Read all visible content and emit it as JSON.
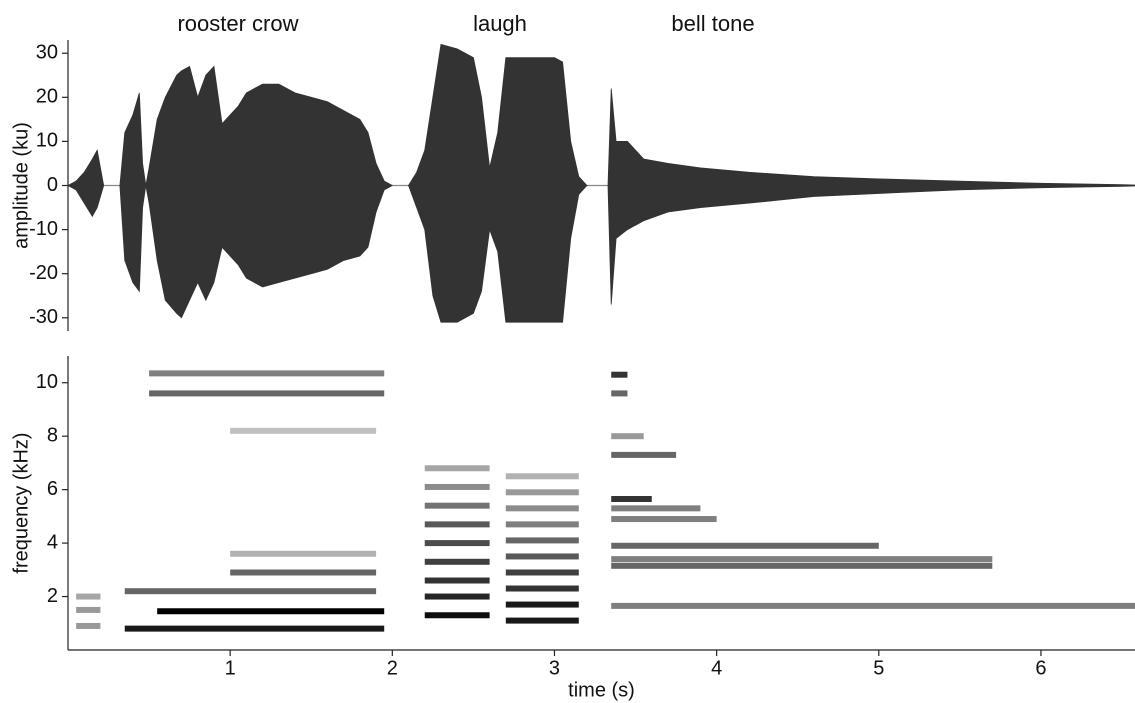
{
  "chart_data": [
    {
      "type": "waveform",
      "ylabel": "amplitude (ku)",
      "annotations": [
        "rooster crow",
        "laugh",
        "bell tone"
      ],
      "xlim": [
        0,
        6.58
      ],
      "ylim": [
        -33,
        33
      ],
      "yticks": [
        -30,
        -20,
        -10,
        0,
        10,
        20,
        30
      ],
      "color": "#333333",
      "x": [
        0.0,
        0.05,
        0.1,
        0.15,
        0.18,
        0.22,
        0.3,
        0.32,
        0.35,
        0.4,
        0.44,
        0.46,
        0.48,
        0.5,
        0.55,
        0.6,
        0.67,
        0.7,
        0.75,
        0.8,
        0.85,
        0.9,
        0.95,
        1.0,
        1.05,
        1.1,
        1.2,
        1.3,
        1.4,
        1.5,
        1.6,
        1.7,
        1.8,
        1.85,
        1.9,
        1.95,
        2.0,
        2.05,
        2.1,
        2.15,
        2.2,
        2.25,
        2.3,
        2.4,
        2.5,
        2.55,
        2.6,
        2.65,
        2.7,
        2.8,
        2.9,
        3.0,
        3.05,
        3.1,
        3.15,
        3.2,
        3.25,
        3.33,
        3.35,
        3.38,
        3.45,
        3.55,
        3.7,
        3.9,
        4.2,
        4.6,
        5.0,
        5.5,
        6.0,
        6.5,
        6.58
      ],
      "upper": [
        0,
        1,
        3,
        6,
        8,
        0,
        null,
        0,
        12,
        16,
        21,
        5,
        0,
        4,
        15,
        20,
        25,
        26,
        27,
        20,
        25,
        27,
        14,
        16,
        18,
        21,
        23,
        23,
        21,
        20,
        19,
        17,
        15,
        12,
        5,
        1,
        0,
        null,
        0,
        3,
        8,
        20,
        32,
        31,
        29,
        20,
        4,
        12,
        29,
        29,
        29,
        29,
        28,
        10,
        2,
        0,
        null,
        0,
        22,
        10,
        10,
        6,
        5,
        4,
        3,
        2,
        1.5,
        1,
        0.5,
        0.2,
        0.1
      ],
      "lower": [
        0,
        -1,
        -4,
        -7,
        -5,
        0,
        null,
        0,
        -17,
        -22,
        -24,
        -5,
        0,
        -4,
        -17,
        -26,
        -29,
        -30,
        -26,
        -22,
        -26,
        -22,
        -14,
        -16,
        -18,
        -21,
        -23,
        -22,
        -21,
        -20,
        -19,
        -17,
        -16,
        -14,
        -6,
        -1,
        0,
        null,
        0,
        -5,
        -10,
        -25,
        -31,
        -31,
        -29,
        -24,
        -10,
        -15,
        -31,
        -31,
        -31,
        -31,
        -31,
        -12,
        -2,
        0,
        null,
        0,
        -27,
        -12,
        -10,
        -8,
        -6,
        -5,
        -4,
        -2.5,
        -1.8,
        -1,
        -0.5,
        -0.2,
        -0.1
      ]
    },
    {
      "type": "spectrogram",
      "xlabel": "time (s)",
      "ylabel": "frequency (kHz)",
      "xlim": [
        0,
        6.58
      ],
      "xticks": [
        1,
        2,
        3,
        4,
        5,
        6
      ],
      "ylim": [
        0,
        11
      ],
      "yticks": [
        2,
        4,
        6,
        8,
        10
      ],
      "color": "#000000",
      "bands": [
        {
          "x": [
            0.05,
            0.2
          ],
          "f": 0.9,
          "level": 0.4
        },
        {
          "x": [
            0.05,
            0.2
          ],
          "f": 1.5,
          "level": 0.4
        },
        {
          "x": [
            0.05,
            0.2
          ],
          "f": 2.0,
          "level": 0.35
        },
        {
          "x": [
            0.35,
            1.95
          ],
          "f": 0.8,
          "level": 0.9
        },
        {
          "x": [
            0.55,
            1.95
          ],
          "f": 1.45,
          "level": 1.0
        },
        {
          "x": [
            0.35,
            1.9
          ],
          "f": 2.2,
          "level": 0.6
        },
        {
          "x": [
            1.0,
            1.9
          ],
          "f": 2.9,
          "level": 0.6
        },
        {
          "x": [
            1.0,
            1.9
          ],
          "f": 3.6,
          "level": 0.3
        },
        {
          "x": [
            1.0,
            1.9
          ],
          "f": 8.2,
          "level": 0.25
        },
        {
          "x": [
            0.5,
            1.95
          ],
          "f": 9.6,
          "level": 0.6
        },
        {
          "x": [
            0.5,
            1.95
          ],
          "f": 10.35,
          "level": 0.5
        },
        {
          "x": [
            2.2,
            2.6
          ],
          "f": 1.3,
          "level": 0.95
        },
        {
          "x": [
            2.2,
            2.6
          ],
          "f": 2.0,
          "level": 0.85
        },
        {
          "x": [
            2.2,
            2.6
          ],
          "f": 2.6,
          "level": 0.8
        },
        {
          "x": [
            2.2,
            2.6
          ],
          "f": 3.3,
          "level": 0.75
        },
        {
          "x": [
            2.2,
            2.6
          ],
          "f": 4.0,
          "level": 0.7
        },
        {
          "x": [
            2.2,
            2.6
          ],
          "f": 4.7,
          "level": 0.65
        },
        {
          "x": [
            2.2,
            2.6
          ],
          "f": 5.4,
          "level": 0.55
        },
        {
          "x": [
            2.2,
            2.6
          ],
          "f": 6.1,
          "level": 0.45
        },
        {
          "x": [
            2.2,
            2.6
          ],
          "f": 6.8,
          "level": 0.35
        },
        {
          "x": [
            2.7,
            3.15
          ],
          "f": 1.1,
          "level": 0.9
        },
        {
          "x": [
            2.7,
            3.15
          ],
          "f": 1.7,
          "level": 0.9
        },
        {
          "x": [
            2.7,
            3.15
          ],
          "f": 2.3,
          "level": 0.8
        },
        {
          "x": [
            2.7,
            3.15
          ],
          "f": 2.9,
          "level": 0.75
        },
        {
          "x": [
            2.7,
            3.15
          ],
          "f": 3.5,
          "level": 0.65
        },
        {
          "x": [
            2.7,
            3.15
          ],
          "f": 4.1,
          "level": 0.6
        },
        {
          "x": [
            2.7,
            3.15
          ],
          "f": 4.7,
          "level": 0.5
        },
        {
          "x": [
            2.7,
            3.15
          ],
          "f": 5.3,
          "level": 0.45
        },
        {
          "x": [
            2.7,
            3.15
          ],
          "f": 5.9,
          "level": 0.4
        },
        {
          "x": [
            2.7,
            3.15
          ],
          "f": 6.5,
          "level": 0.3
        },
        {
          "x": [
            3.35,
            6.58
          ],
          "f": 1.65,
          "level": 0.5
        },
        {
          "x": [
            3.35,
            5.7
          ],
          "f": 3.15,
          "level": 0.6
        },
        {
          "x": [
            3.35,
            5.7
          ],
          "f": 3.4,
          "level": 0.5
        },
        {
          "x": [
            3.35,
            5.0
          ],
          "f": 3.9,
          "level": 0.6
        },
        {
          "x": [
            3.35,
            4.0
          ],
          "f": 4.9,
          "level": 0.5
        },
        {
          "x": [
            3.35,
            3.9
          ],
          "f": 5.3,
          "level": 0.5
        },
        {
          "x": [
            3.35,
            3.6
          ],
          "f": 5.65,
          "level": 0.8
        },
        {
          "x": [
            3.35,
            3.75
          ],
          "f": 7.3,
          "level": 0.6
        },
        {
          "x": [
            3.35,
            3.55
          ],
          "f": 8.0,
          "level": 0.4
        },
        {
          "x": [
            3.35,
            3.45
          ],
          "f": 9.6,
          "level": 0.6
        },
        {
          "x": [
            3.35,
            3.45
          ],
          "f": 10.3,
          "level": 0.8
        }
      ]
    }
  ]
}
